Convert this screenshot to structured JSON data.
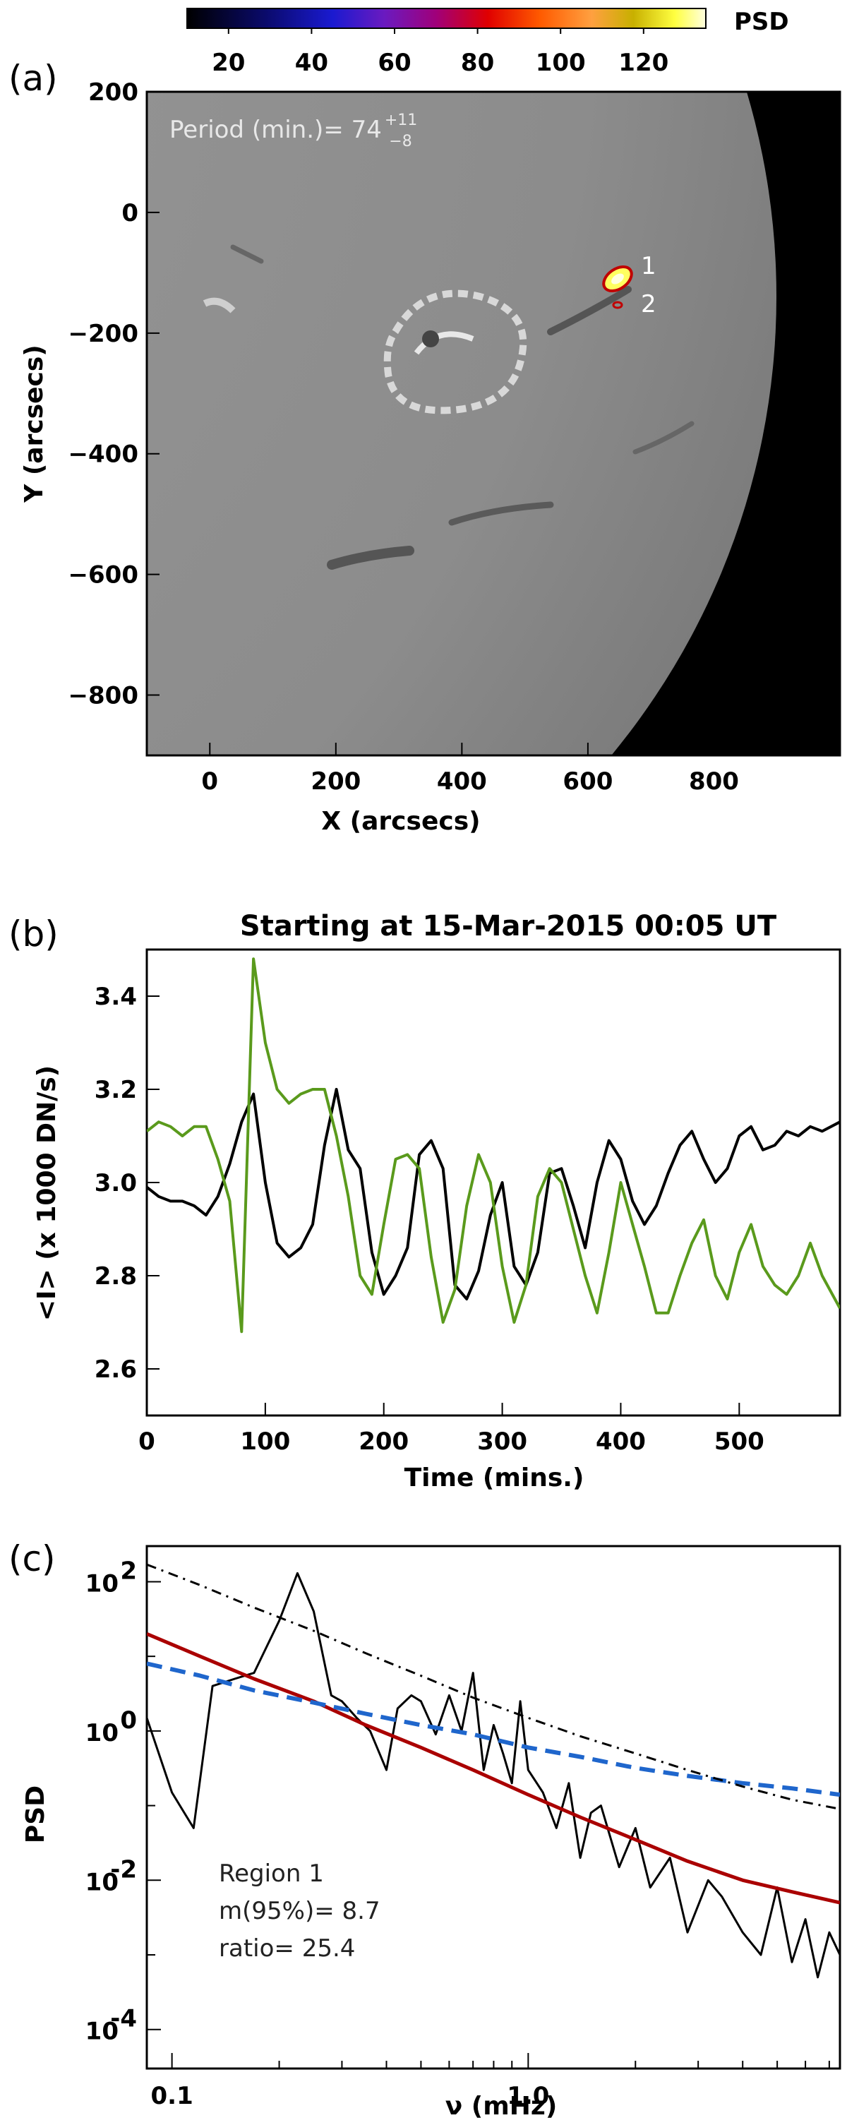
{
  "panel_a": {
    "label": "(a)",
    "colorbar": {
      "label": "PSD",
      "range": [
        10,
        135
      ],
      "ticks": [
        "20",
        "40",
        "60",
        "80",
        "100",
        "120"
      ]
    },
    "period_text": "Period (min.)= 74",
    "period_sup": "+11",
    "period_sub": "−8",
    "region_labels": [
      "1",
      "2"
    ],
    "chart_data": {
      "type": "heatmap",
      "xlabel": "X (arcsecs)",
      "ylabel": "Y (arcsecs)",
      "xlim": [
        -100,
        1000
      ],
      "ylim": [
        -900,
        200
      ],
      "xticks": [
        "0",
        "200",
        "400",
        "600",
        "800"
      ],
      "yticks": [
        "200",
        "0",
        "−200",
        "−400",
        "−600",
        "−800"
      ],
      "contour_regions": [
        {
          "name": "1",
          "x": 655,
          "y": -110
        },
        {
          "name": "2",
          "x": 650,
          "y": -155
        }
      ]
    }
  },
  "panel_b": {
    "label": "(b)",
    "chart_data": {
      "type": "line",
      "title": "Starting at 15-Mar-2015 00:05 UT",
      "xlabel": "Time (mins.)",
      "ylabel": "<I> (x 1000 DN/s)",
      "xlim": [
        0,
        585
      ],
      "ylim": [
        2.5,
        3.5
      ],
      "xticks": [
        "0",
        "100",
        "200",
        "300",
        "400",
        "500"
      ],
      "yticks": [
        "2.6",
        "2.8",
        "3.0",
        "3.2",
        "3.4"
      ],
      "series": [
        {
          "color": "#000000",
          "x": [
            0,
            10,
            20,
            30,
            40,
            50,
            60,
            70,
            80,
            90,
            100,
            110,
            120,
            130,
            140,
            150,
            160,
            170,
            180,
            190,
            200,
            210,
            220,
            230,
            240,
            250,
            260,
            270,
            280,
            290,
            300,
            310,
            320,
            330,
            340,
            350,
            360,
            370,
            380,
            390,
            400,
            410,
            420,
            430,
            440,
            450,
            460,
            470,
            480,
            490,
            500,
            510,
            520,
            530,
            540,
            550,
            560,
            570,
            585
          ],
          "y": [
            2.99,
            2.97,
            2.96,
            2.96,
            2.95,
            2.93,
            2.97,
            3.04,
            3.13,
            3.19,
            3.0,
            2.87,
            2.84,
            2.86,
            2.91,
            3.08,
            3.2,
            3.07,
            3.03,
            2.85,
            2.76,
            2.8,
            2.86,
            3.06,
            3.09,
            3.03,
            2.78,
            2.75,
            2.81,
            2.93,
            3.0,
            2.82,
            2.78,
            2.85,
            3.02,
            3.03,
            2.95,
            2.86,
            3.0,
            3.09,
            3.05,
            2.96,
            2.91,
            2.95,
            3.02,
            3.08,
            3.11,
            3.05,
            3.0,
            3.03,
            3.1,
            3.12,
            3.07,
            3.08,
            3.11,
            3.1,
            3.12,
            3.11,
            3.13
          ]
        },
        {
          "color": "#5a9a1c",
          "x": [
            0,
            10,
            20,
            30,
            40,
            50,
            60,
            70,
            80,
            90,
            100,
            110,
            120,
            130,
            140,
            150,
            160,
            170,
            180,
            190,
            200,
            210,
            220,
            230,
            240,
            250,
            260,
            270,
            280,
            290,
            300,
            310,
            320,
            330,
            340,
            350,
            360,
            370,
            380,
            390,
            400,
            410,
            420,
            430,
            440,
            450,
            460,
            470,
            480,
            490,
            500,
            510,
            520,
            530,
            540,
            550,
            560,
            570,
            585
          ],
          "y": [
            3.11,
            3.13,
            3.12,
            3.1,
            3.12,
            3.12,
            3.05,
            2.96,
            2.68,
            3.48,
            3.3,
            3.2,
            3.17,
            3.19,
            3.2,
            3.2,
            3.1,
            2.97,
            2.8,
            2.76,
            2.91,
            3.05,
            3.06,
            3.03,
            2.84,
            2.7,
            2.77,
            2.95,
            3.06,
            3.0,
            2.82,
            2.7,
            2.78,
            2.97,
            3.03,
            3.0,
            2.9,
            2.8,
            2.72,
            2.85,
            3.0,
            2.91,
            2.82,
            2.72,
            2.72,
            2.8,
            2.87,
            2.92,
            2.8,
            2.75,
            2.85,
            2.91,
            2.82,
            2.78,
            2.76,
            2.8,
            2.87,
            2.8,
            2.73
          ]
        }
      ]
    }
  },
  "panel_c": {
    "label": "(c)",
    "annot": {
      "l1": "Region 1",
      "l2": "m(95%)= 8.7",
      "l3": "ratio=   25.4"
    },
    "chart_data": {
      "type": "line",
      "xlabel": "ν (mHz)",
      "ylabel": "PSD",
      "xscale": "log",
      "yscale": "log",
      "xlim": [
        0.085,
        7.5
      ],
      "ylim": [
        3e-05,
        300
      ],
      "xticks": [
        "0.1",
        "1.0"
      ],
      "yticks": [
        "10^2",
        "10^0",
        "10^-2",
        "10^-4"
      ],
      "series": [
        {
          "color": "#000000",
          "style": "solid",
          "x": [
            0.085,
            0.1,
            0.115,
            0.13,
            0.15,
            0.17,
            0.2,
            0.225,
            0.25,
            0.28,
            0.3,
            0.33,
            0.36,
            0.4,
            0.43,
            0.47,
            0.5,
            0.55,
            0.6,
            0.65,
            0.7,
            0.75,
            0.8,
            0.85,
            0.9,
            0.95,
            1.0,
            1.1,
            1.2,
            1.3,
            1.4,
            1.5,
            1.6,
            1.8,
            2.0,
            2.2,
            2.5,
            2.8,
            3.2,
            3.5,
            4.0,
            4.5,
            5.0,
            5.5,
            6.0,
            6.5,
            7.0,
            7.5
          ],
          "y": [
            1.5,
            0.15,
            0.05,
            4,
            5,
            6,
            30,
            130,
            40,
            3,
            2.5,
            1.5,
            1,
            0.3,
            2,
            3,
            2.5,
            0.9,
            3,
            1,
            6,
            0.3,
            1.2,
            0.5,
            0.2,
            2.5,
            0.3,
            0.15,
            0.05,
            0.2,
            0.02,
            0.08,
            0.1,
            0.015,
            0.05,
            0.008,
            0.02,
            0.002,
            0.01,
            0.006,
            0.002,
            0.001,
            0.008,
            0.0008,
            0.003,
            0.0005,
            0.002,
            0.001
          ]
        },
        {
          "color": "#aa0000",
          "style": "solid",
          "x": [
            0.085,
            0.12,
            0.17,
            0.25,
            0.35,
            0.5,
            0.7,
            1.0,
            1.4,
            2.0,
            2.8,
            4.0,
            5.5,
            7.5
          ],
          "y": [
            20,
            10,
            5,
            2.5,
            1.2,
            0.6,
            0.3,
            0.14,
            0.07,
            0.035,
            0.018,
            0.01,
            0.007,
            0.005
          ]
        },
        {
          "color": "#1f66cc",
          "style": "dashed",
          "x": [
            0.085,
            0.12,
            0.17,
            0.25,
            0.35,
            0.5,
            0.7,
            1.0,
            1.4,
            2.0,
            2.8,
            4.0,
            5.5,
            7.5
          ],
          "y": [
            8,
            5.5,
            3.5,
            2.4,
            1.7,
            1.2,
            0.9,
            0.6,
            0.45,
            0.32,
            0.25,
            0.2,
            0.17,
            0.14
          ]
        },
        {
          "color": "#000000",
          "style": "dashdot",
          "x": [
            0.085,
            0.12,
            0.17,
            0.25,
            0.35,
            0.5,
            0.7,
            1.0,
            1.4,
            2.0,
            2.8,
            4.0,
            5.5,
            7.5
          ],
          "y": [
            170,
            90,
            45,
            22,
            11,
            5.5,
            2.8,
            1.5,
            0.85,
            0.5,
            0.3,
            0.18,
            0.12,
            0.09
          ]
        }
      ]
    }
  }
}
